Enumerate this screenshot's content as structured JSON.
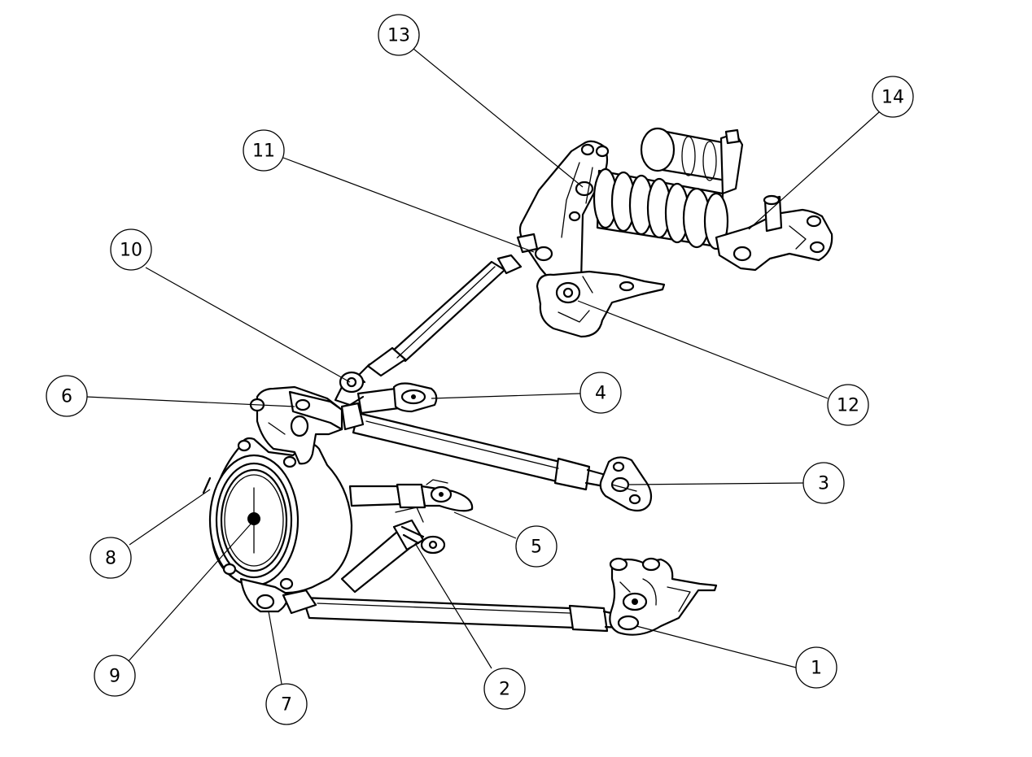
{
  "callouts": [
    {
      "id": "callout-1",
      "label": "1"
    },
    {
      "id": "callout-2",
      "label": "2"
    },
    {
      "id": "callout-3",
      "label": "3"
    },
    {
      "id": "callout-4",
      "label": "4"
    },
    {
      "id": "callout-5",
      "label": "5"
    },
    {
      "id": "callout-6",
      "label": "6"
    },
    {
      "id": "callout-7",
      "label": "7"
    },
    {
      "id": "callout-8",
      "label": "8"
    },
    {
      "id": "callout-9",
      "label": "9"
    },
    {
      "id": "callout-10",
      "label": "10"
    },
    {
      "id": "callout-11",
      "label": "11"
    },
    {
      "id": "callout-12",
      "label": "12"
    },
    {
      "id": "callout-13",
      "label": "13"
    },
    {
      "id": "callout-14",
      "label": "14"
    }
  ]
}
